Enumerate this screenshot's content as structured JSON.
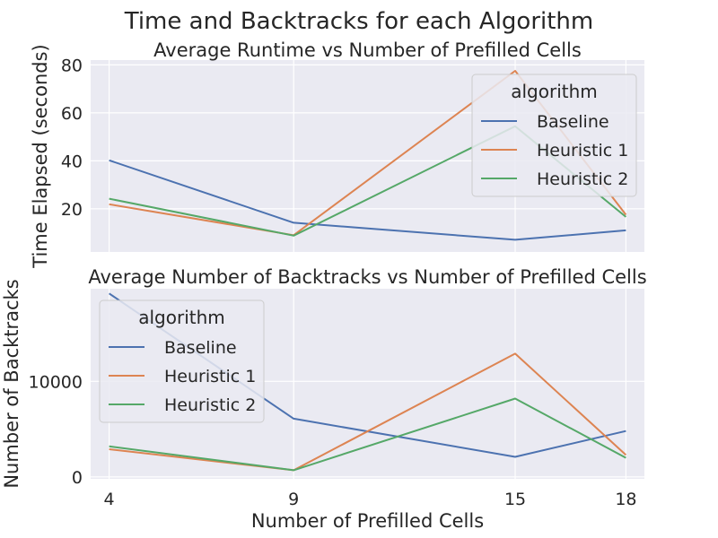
{
  "figure": {
    "title": "Time and Backtracks for each Algorithm"
  },
  "colors": {
    "axes_bg": "#eaeaf2",
    "grid": "#ffffff",
    "Baseline": "#4c72b0",
    "Heuristic 1": "#dd8452",
    "Heuristic 2": "#55a868"
  },
  "chart_data": [
    {
      "type": "line",
      "title": "Average Runtime vs Number of Prefilled Cells",
      "xlabel": "",
      "ylabel": "Time Elapsed (seconds)",
      "categories": [
        "4",
        "9",
        "15",
        "18"
      ],
      "x": [
        4,
        9,
        15,
        18
      ],
      "xlim": [
        3.5,
        18.5
      ],
      "ylim": [
        2,
        82
      ],
      "yticks": [
        20,
        40,
        60,
        80
      ],
      "grid": true,
      "legend": {
        "title": "algorithm",
        "placement": "top-right"
      },
      "series": [
        {
          "name": "Baseline",
          "values": [
            40.2,
            14.2,
            7.1,
            11.0
          ]
        },
        {
          "name": "Heuristic 1",
          "values": [
            21.9,
            9.0,
            77.5,
            17.5
          ]
        },
        {
          "name": "Heuristic 2",
          "values": [
            24.2,
            8.8,
            54.4,
            16.6
          ]
        }
      ]
    },
    {
      "type": "line",
      "title": "Average Number of Backtracks vs Number of Prefilled Cells",
      "xlabel": "Number of Prefilled Cells",
      "ylabel": "Number of Backtracks",
      "categories": [
        "4",
        "9",
        "15",
        "18"
      ],
      "x": [
        4,
        9,
        15,
        18
      ],
      "xlim": [
        3.5,
        18.5
      ],
      "ylim": [
        -200,
        19700
      ],
      "yticks": [
        0,
        10000
      ],
      "grid": true,
      "legend": {
        "title": "algorithm",
        "placement": "upper-left"
      },
      "series": [
        {
          "name": "Baseline",
          "values": [
            19200,
            6100,
            2100,
            4800
          ]
        },
        {
          "name": "Heuristic 1",
          "values": [
            2900,
            700,
            12900,
            2300
          ]
        },
        {
          "name": "Heuristic 2",
          "values": [
            3200,
            700,
            8200,
            2000
          ]
        }
      ]
    }
  ]
}
